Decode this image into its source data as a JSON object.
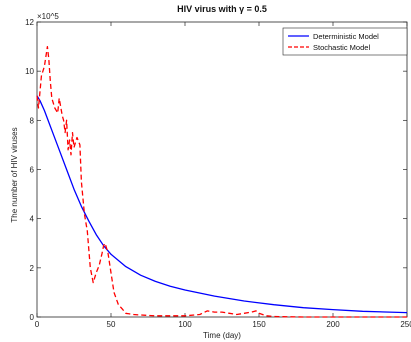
{
  "chart_data": {
    "type": "line",
    "title": "HIV virus with γ = 0.5",
    "xlabel": "Time (day)",
    "ylabel": "The number of HIV viruses",
    "y_multiplier": "×10^5",
    "xlim": [
      0,
      250
    ],
    "ylim": [
      0,
      12
    ],
    "xticks": [
      0,
      50,
      100,
      150,
      200,
      250
    ],
    "yticks": [
      0,
      2,
      4,
      6,
      8,
      10,
      12
    ],
    "grid": false,
    "legend_position": "top-right",
    "series": [
      {
        "name": "Deterministic Model",
        "color": "#0000ff",
        "style": "solid",
        "x": [
          0,
          2,
          5,
          10,
          15,
          20,
          25,
          30,
          35,
          40,
          45,
          50,
          60,
          70,
          80,
          90,
          100,
          120,
          140,
          160,
          180,
          200,
          220,
          250
        ],
        "y": [
          9.0,
          8.8,
          8.4,
          7.6,
          6.8,
          6.0,
          5.2,
          4.5,
          3.9,
          3.35,
          2.9,
          2.55,
          2.05,
          1.7,
          1.45,
          1.25,
          1.1,
          0.85,
          0.65,
          0.5,
          0.38,
          0.3,
          0.23,
          0.18
        ]
      },
      {
        "name": "Stochastic Model",
        "color": "#ff0000",
        "style": "dashed",
        "x": [
          0,
          1,
          3,
          5,
          7,
          8,
          9,
          10,
          12,
          14,
          15,
          17,
          18,
          19,
          20,
          21,
          22,
          23,
          24,
          25,
          27,
          29,
          30,
          32,
          34,
          36,
          38,
          40,
          42,
          44,
          45,
          46,
          48,
          50,
          52,
          55,
          58,
          60,
          65,
          70,
          80,
          90,
          100,
          110,
          115,
          120,
          125,
          130,
          135,
          140,
          145,
          148,
          150,
          155,
          160,
          170,
          180,
          190,
          200,
          220,
          250
        ],
        "y": [
          9.0,
          8.5,
          9.8,
          10.2,
          11.0,
          10.5,
          9.6,
          8.9,
          8.5,
          8.3,
          8.9,
          8.2,
          8.0,
          7.5,
          8.0,
          6.8,
          7.2,
          6.6,
          7.5,
          6.9,
          7.3,
          7.0,
          5.5,
          4.2,
          3.5,
          2.0,
          1.4,
          1.8,
          2.1,
          2.6,
          2.9,
          3.0,
          2.6,
          1.8,
          1.0,
          0.5,
          0.3,
          0.15,
          0.1,
          0.08,
          0.05,
          0.05,
          0.05,
          0.1,
          0.25,
          0.2,
          0.2,
          0.15,
          0.1,
          0.15,
          0.2,
          0.25,
          0.15,
          0.05,
          0.02,
          0.01,
          0.0,
          0.0,
          0.0,
          0.0,
          0.0
        ]
      }
    ]
  }
}
